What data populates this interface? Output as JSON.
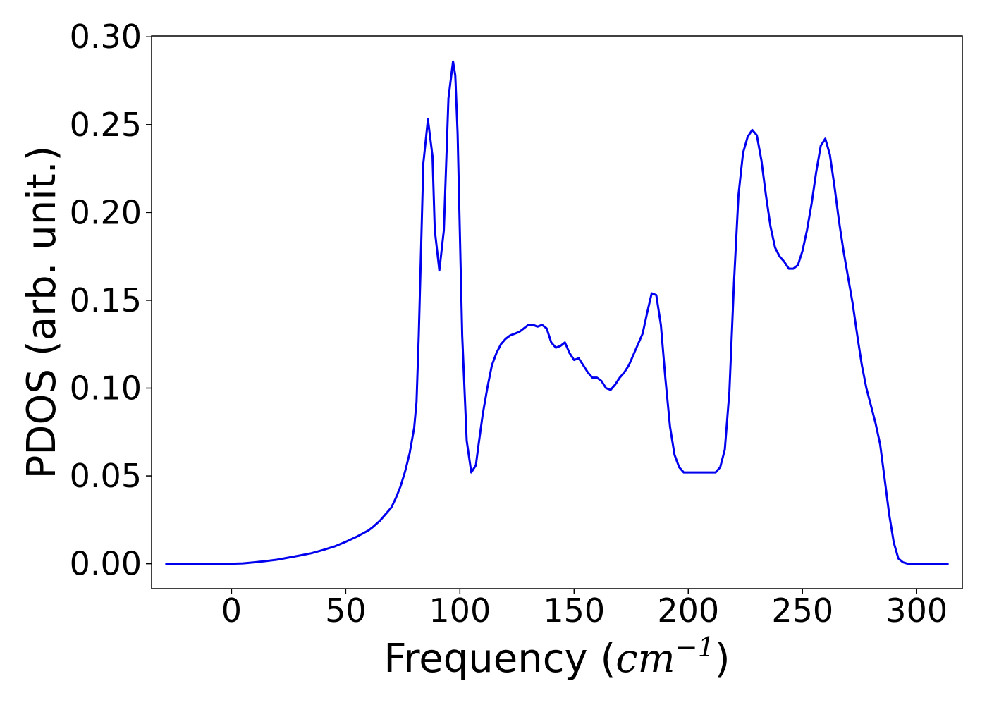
{
  "chart_data": {
    "type": "line",
    "xlabel": "Frequency",
    "xlabel_unit_base": "cm",
    "xlabel_unit_exp": "−1",
    "ylabel": "PDOS (arb. unit.)",
    "xlim": [
      -35,
      320
    ],
    "ylim": [
      -0.0142,
      0.3005
    ],
    "x_ticks": [
      0,
      50,
      100,
      150,
      200,
      250,
      300
    ],
    "x_tick_labels": [
      "0",
      "50",
      "100",
      "150",
      "200",
      "250",
      "300"
    ],
    "y_ticks": [
      0.0,
      0.05,
      0.1,
      0.15,
      0.2,
      0.25,
      0.3
    ],
    "y_tick_labels": [
      "0.00",
      "0.05",
      "0.10",
      "0.15",
      "0.20",
      "0.25",
      "0.30"
    ],
    "grid": false,
    "series": [
      {
        "color": "#0000ee",
        "x": [
          -29,
          -20,
          -10,
          0,
          5,
          10,
          15,
          20,
          25,
          30,
          35,
          40,
          45,
          50,
          55,
          60,
          62,
          65,
          67,
          70,
          72,
          74,
          76,
          78,
          80,
          81,
          82,
          84,
          86,
          88,
          89,
          91,
          93,
          95,
          97,
          98,
          99,
          101,
          103,
          105,
          107,
          108,
          110,
          112,
          114,
          116,
          118,
          120,
          122,
          124,
          126,
          128,
          130,
          132,
          134,
          136,
          138,
          140,
          142,
          144,
          146,
          148,
          150,
          152,
          154,
          156,
          158,
          160,
          162,
          164,
          166,
          168,
          170,
          172,
          174,
          176,
          178,
          180,
          182,
          184,
          186,
          188,
          190,
          192,
          194,
          196,
          198,
          200,
          202,
          204,
          206,
          208,
          210,
          212,
          214,
          216,
          218,
          220,
          222,
          224,
          226,
          228,
          230,
          232,
          234,
          236,
          238,
          240,
          242,
          244,
          246,
          248,
          250,
          252,
          254,
          256,
          258,
          260,
          262,
          264,
          266,
          268,
          270,
          272,
          274,
          276,
          278,
          280,
          282,
          284,
          286,
          288,
          290,
          292,
          294,
          296,
          300,
          305,
          310,
          314
        ],
        "y": [
          0.0,
          0.0,
          0.0,
          0.0,
          0.0002,
          0.0008,
          0.0015,
          0.0023,
          0.0035,
          0.0047,
          0.006,
          0.0078,
          0.0098,
          0.0125,
          0.0155,
          0.019,
          0.021,
          0.0245,
          0.0275,
          0.032,
          0.0375,
          0.044,
          0.0525,
          0.063,
          0.0775,
          0.092,
          0.13,
          0.228,
          0.253,
          0.232,
          0.19,
          0.167,
          0.19,
          0.265,
          0.286,
          0.278,
          0.245,
          0.13,
          0.07,
          0.052,
          0.056,
          0.066,
          0.085,
          0.1,
          0.113,
          0.12,
          0.125,
          0.128,
          0.13,
          0.131,
          0.132,
          0.134,
          0.136,
          0.136,
          0.135,
          0.136,
          0.134,
          0.126,
          0.123,
          0.124,
          0.126,
          0.12,
          0.116,
          0.117,
          0.113,
          0.109,
          0.106,
          0.106,
          0.104,
          0.1,
          0.099,
          0.102,
          0.106,
          0.109,
          0.113,
          0.119,
          0.125,
          0.131,
          0.143,
          0.154,
          0.153,
          0.136,
          0.105,
          0.078,
          0.062,
          0.055,
          0.052,
          0.052,
          0.052,
          0.052,
          0.052,
          0.052,
          0.052,
          0.052,
          0.055,
          0.065,
          0.098,
          0.16,
          0.21,
          0.234,
          0.243,
          0.247,
          0.244,
          0.23,
          0.21,
          0.192,
          0.18,
          0.175,
          0.172,
          0.168,
          0.168,
          0.17,
          0.178,
          0.19,
          0.205,
          0.223,
          0.238,
          0.242,
          0.233,
          0.215,
          0.195,
          0.178,
          0.163,
          0.148,
          0.13,
          0.113,
          0.1,
          0.09,
          0.08,
          0.068,
          0.048,
          0.028,
          0.012,
          0.003,
          0.0008,
          0.0,
          0.0,
          0.0,
          0.0,
          0.0
        ]
      }
    ]
  }
}
